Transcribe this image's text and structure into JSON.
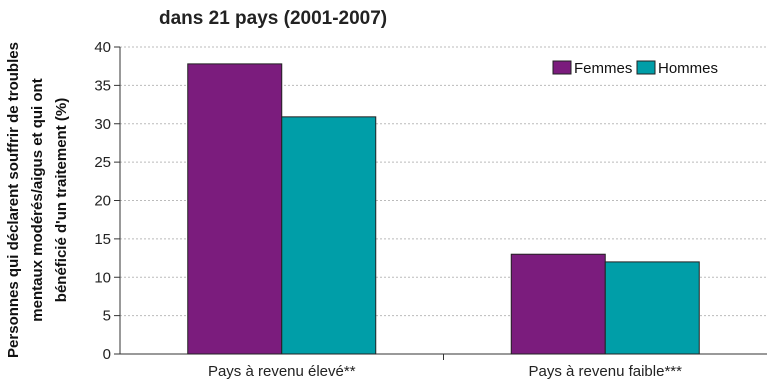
{
  "chart_data": {
    "type": "bar",
    "title_lines": [
      "dans 21 pays (2001-2007)"
    ],
    "ylabel_lines": [
      "Personnes qui déclarent souffrir de troubles",
      "mentaux modérés/aigus et qui ont",
      "bénéficié d'un traitement (%)"
    ],
    "categories": [
      "Pays à revenu élevé**",
      "Pays à revenu faible***"
    ],
    "series": [
      {
        "name": "Femmes",
        "color": "#7b1c7d",
        "values": [
          37.8,
          13.0
        ]
      },
      {
        "name": "Hommes",
        "color": "#009ea8",
        "values": [
          30.9,
          12.0
        ]
      }
    ],
    "ylim": [
      0,
      40
    ],
    "yticks": [
      0,
      5,
      10,
      15,
      20,
      25,
      30,
      35,
      40
    ],
    "grid": true,
    "legend_position": "top-right"
  }
}
